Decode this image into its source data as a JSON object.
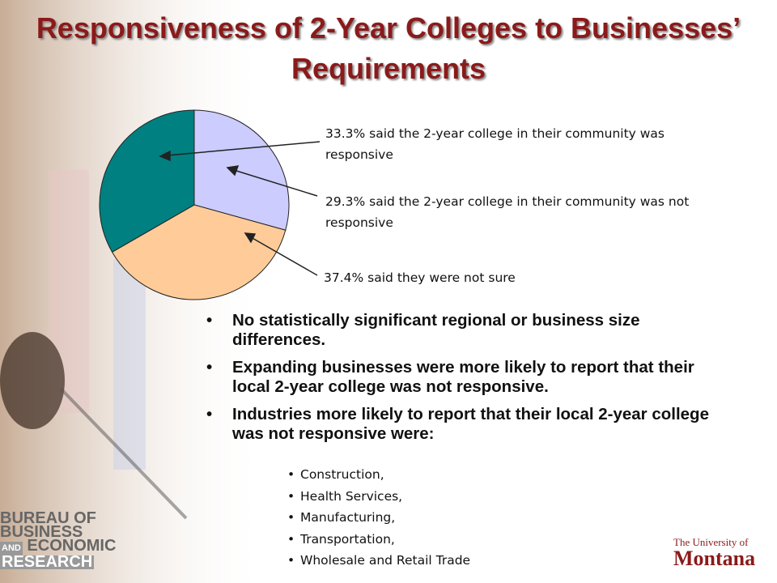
{
  "chart_data": {
    "type": "pie",
    "title": "Responsiveness of 2-Year Colleges to Businesses’ Requirements",
    "values": [
      29.3,
      37.4,
      33.3
    ],
    "value_labels": [
      "29.3% said the 2-year college in their community was not responsive",
      "37.4% said they were not sure",
      "33.3% said the 2-year college in their community was responsive"
    ],
    "colors": [
      "#ccccff",
      "#ffcc99",
      "#008080"
    ]
  },
  "bullets": [
    "No statistically significant regional or business size differences.",
    "Expanding businesses were more likely to report that their local 2-year college was not responsive.",
    "Industries more likely to report that their local 2-year college was not responsive were:"
  ],
  "sub_bullets": [
    "Construction,",
    "Health Services,",
    "Manufacturing,",
    "Transportation,",
    "Wholesale and Retail Trade"
  ],
  "logos": {
    "bureau": [
      "BUREAU OF",
      "BUSINESS",
      "AND",
      "ECONOMIC",
      "RESEARCH"
    ],
    "university": [
      "The University of",
      "Montana"
    ]
  }
}
